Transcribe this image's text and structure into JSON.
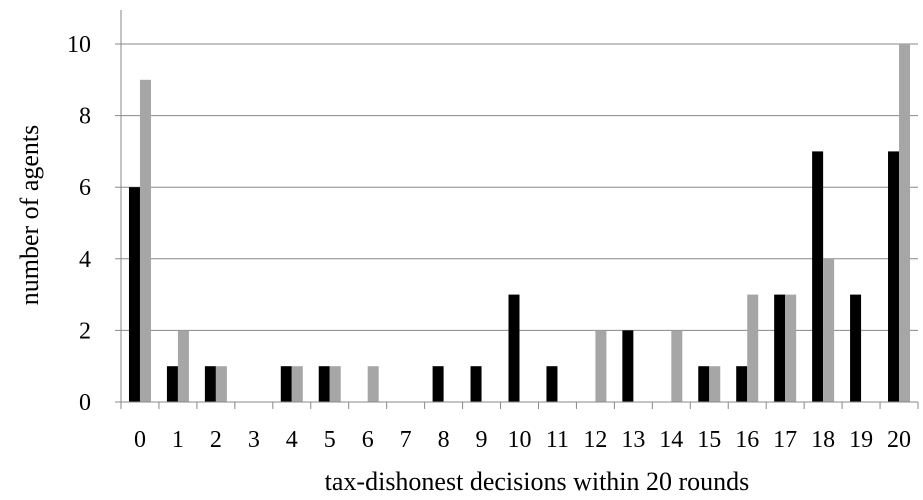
{
  "chart_data": {
    "type": "bar",
    "title": "",
    "xlabel": "tax-dishonest decisions within 20 rounds",
    "ylabel": "number of agents",
    "categories": [
      "0",
      "1",
      "2",
      "3",
      "4",
      "5",
      "6",
      "7",
      "8",
      "9",
      "10",
      "11",
      "12",
      "13",
      "14",
      "15",
      "16",
      "17",
      "18",
      "19",
      "20"
    ],
    "series": [
      {
        "color": "#000000",
        "values": [
          6,
          1,
          1,
          0,
          1,
          1,
          0,
          0,
          1,
          1,
          3,
          1,
          0,
          2,
          0,
          1,
          1,
          3,
          7,
          3,
          7
        ]
      },
      {
        "color": "#a6a6a6",
        "values": [
          9,
          2,
          1,
          0,
          1,
          1,
          1,
          0,
          0,
          0,
          0,
          0,
          2,
          0,
          2,
          1,
          3,
          3,
          4,
          0,
          10
        ]
      }
    ],
    "ylim": [
      0,
      10
    ],
    "yticks": [
      "0",
      "2",
      "4",
      "6",
      "8",
      "10"
    ],
    "grid": true,
    "legend": "none",
    "colors": {
      "gridline": "#888888",
      "axis": "#888888"
    }
  }
}
